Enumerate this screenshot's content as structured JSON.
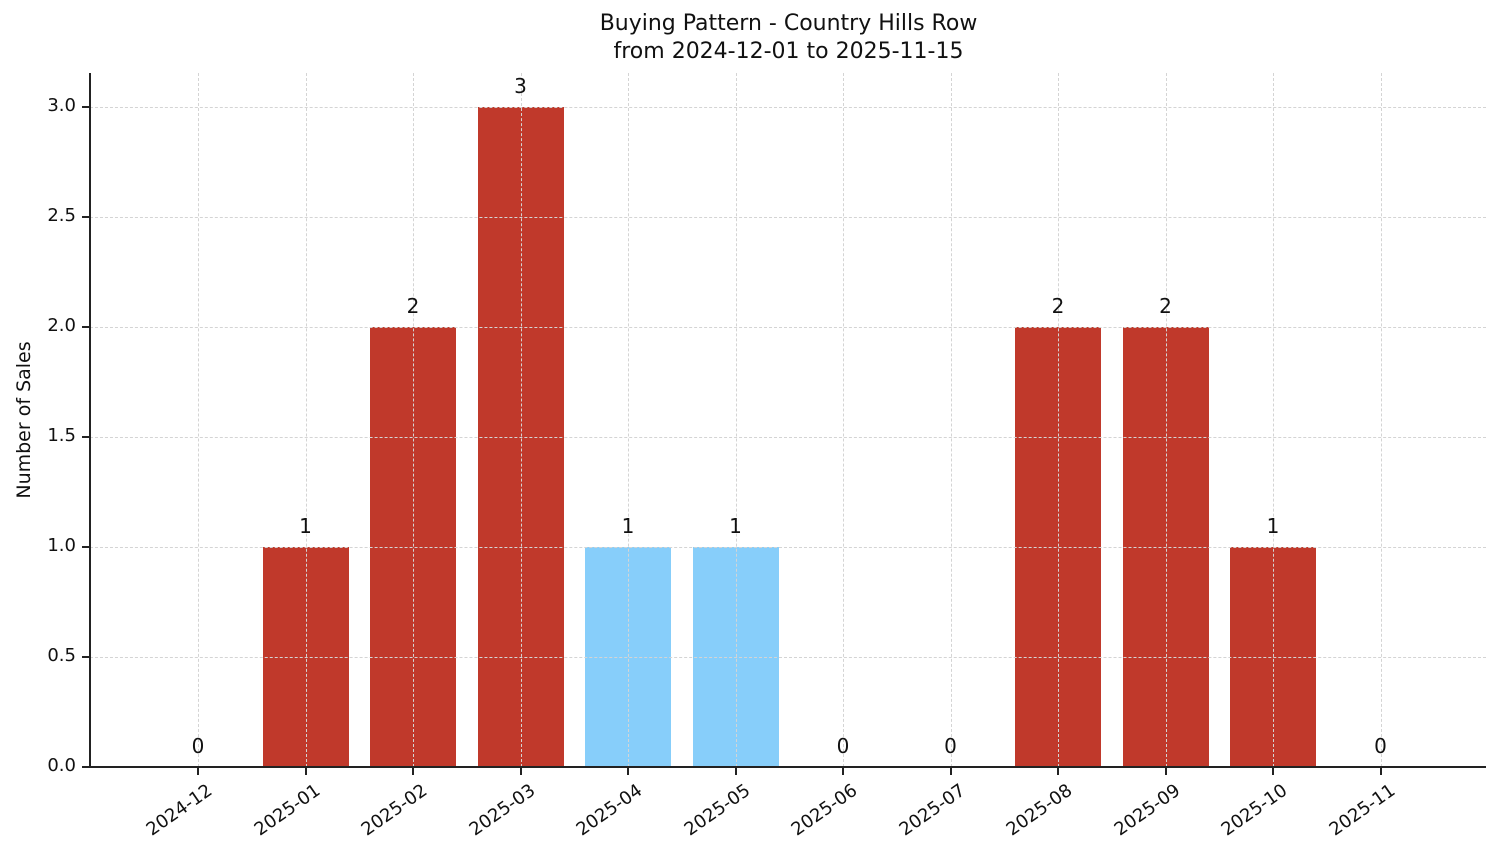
{
  "chart_data": {
    "type": "bar",
    "title": "Buying Pattern - Country Hills Row",
    "subtitle": "from 2024-12-01 to 2025-11-15",
    "xlabel": "",
    "ylabel": "Number of Sales",
    "ylim": [
      0,
      3.15
    ],
    "yticks": [
      "0.0",
      "0.5",
      "1.0",
      "1.5",
      "2.0",
      "2.5",
      "3.0"
    ],
    "grid": true,
    "categories": [
      "2024-12",
      "2025-01",
      "2025-02",
      "2025-03",
      "2025-04",
      "2025-05",
      "2025-06",
      "2025-07",
      "2025-08",
      "2025-09",
      "2025-10",
      "2025-11"
    ],
    "values": [
      0,
      1,
      2,
      3,
      1,
      1,
      0,
      0,
      2,
      2,
      1,
      0
    ],
    "bar_labels": [
      "0",
      "1",
      "2",
      "3",
      "1",
      "1",
      "0",
      "0",
      "2",
      "2",
      "1",
      "0"
    ],
    "bar_colors": [
      "#c0392b",
      "#c0392b",
      "#c0392b",
      "#c0392b",
      "#87cefa",
      "#87cefa",
      "#c0392b",
      "#c0392b",
      "#c0392b",
      "#c0392b",
      "#c0392b",
      "#c0392b"
    ],
    "colors": {
      "primary": "#c0392b",
      "highlight": "#87cefa"
    }
  }
}
